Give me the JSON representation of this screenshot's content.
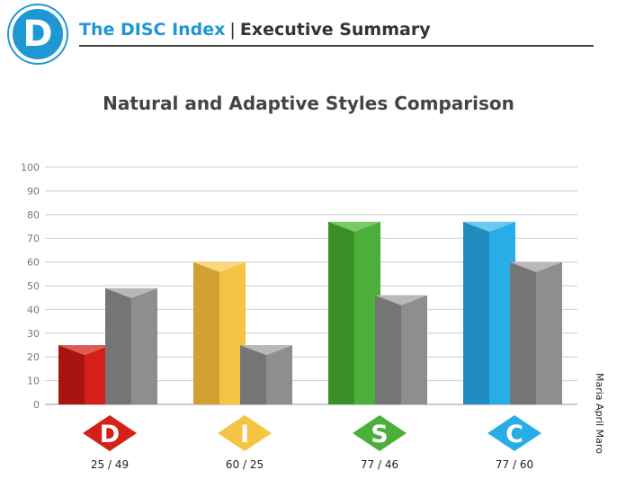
{
  "header": {
    "logo_letter": "D",
    "brand": "The DISC Index",
    "separator": "|",
    "section": "Executive Summary"
  },
  "person_name": "Maria April Maro",
  "chart_data": {
    "type": "bar",
    "title": "Natural and Adaptive Styles Comparison",
    "categories": [
      "D",
      "I",
      "S",
      "C"
    ],
    "series": [
      {
        "values": [
          25,
          60,
          77,
          77
        ]
      },
      {
        "values": [
          49,
          25,
          46,
          60
        ]
      }
    ],
    "value_labels": [
      "25 / 49",
      "60 / 25",
      "77 / 46",
      "77 / 60"
    ],
    "ylim": [
      0,
      100
    ],
    "yticks": [
      0,
      10,
      20,
      30,
      40,
      50,
      60,
      70,
      80,
      90,
      100
    ],
    "grid": true,
    "colors": {
      "D": {
        "front": "#d42018",
        "side": "#a8140f",
        "top": "#e05a55"
      },
      "I": {
        "front": "#f6c444",
        "side": "#d2a030",
        "top": "#fad77a"
      },
      "S": {
        "front": "#4caf39",
        "side": "#3a8f2b",
        "top": "#7cc868"
      },
      "C": {
        "front": "#29ade7",
        "side": "#1f8dc0",
        "top": "#6cc8f0"
      },
      "adaptive": {
        "front": "#8e8e8e",
        "side": "#757575",
        "top": "#b8b8b8"
      }
    }
  }
}
